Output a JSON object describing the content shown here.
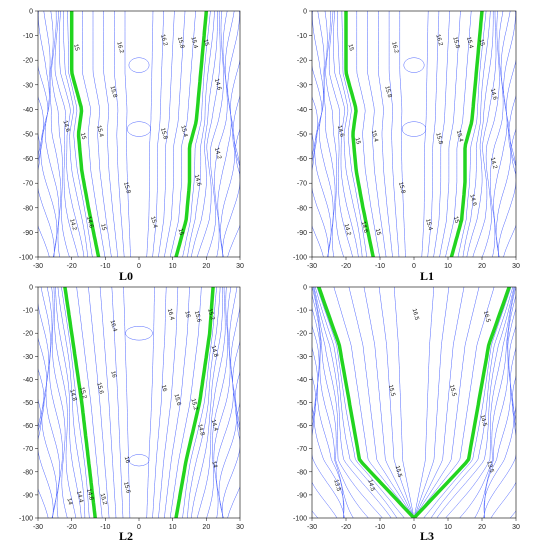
{
  "chart_data": [
    {
      "type": "contour",
      "title": "L0",
      "xlim": [
        -30,
        30
      ],
      "ylim": [
        -100,
        0
      ],
      "x_ticks": [
        -30,
        -20,
        -10,
        0,
        10,
        20,
        30
      ],
      "y_ticks": [
        0,
        -10,
        -20,
        -30,
        -40,
        -50,
        -60,
        -70,
        -80,
        -90,
        -100
      ],
      "highlight_level": 15,
      "labels": [
        {
          "text": "15",
          "x": -19,
          "y": -15
        },
        {
          "text": "16.2",
          "x": -6,
          "y": -15
        },
        {
          "text": "16.2",
          "x": 7,
          "y": -12
        },
        {
          "text": "15.8",
          "x": 12,
          "y": -13
        },
        {
          "text": "15.4",
          "x": 16,
          "y": -13
        },
        {
          "text": "15",
          "x": 19.5,
          "y": -13
        },
        {
          "text": "15.8",
          "x": -8,
          "y": -33
        },
        {
          "text": "14.6",
          "x": 23,
          "y": -30
        },
        {
          "text": "14.6",
          "x": -22,
          "y": -47
        },
        {
          "text": "15.4",
          "x": -12,
          "y": -49
        },
        {
          "text": "15",
          "x": -17,
          "y": -51
        },
        {
          "text": "15.8",
          "x": 7,
          "y": -50
        },
        {
          "text": "15.4",
          "x": 13,
          "y": -49
        },
        {
          "text": "14.2",
          "x": 23,
          "y": -58
        },
        {
          "text": "14.6",
          "x": 17,
          "y": -69
        },
        {
          "text": "15.8",
          "x": -4,
          "y": -72
        },
        {
          "text": "14.2",
          "x": -20,
          "y": -87
        },
        {
          "text": "14.6",
          "x": -15,
          "y": -86
        },
        {
          "text": "15",
          "x": -11,
          "y": -88
        },
        {
          "text": "15.4",
          "x": 4,
          "y": -86
        },
        {
          "text": "15",
          "x": 12,
          "y": -90
        }
      ]
    },
    {
      "type": "contour",
      "title": "L1",
      "xlim": [
        -30,
        30
      ],
      "ylim": [
        -100,
        0
      ],
      "x_ticks": [
        -30,
        -20,
        -10,
        0,
        10,
        20,
        30
      ],
      "y_ticks": [
        0,
        -10,
        -20,
        -30,
        -40,
        -50,
        -60,
        -70,
        -80,
        -90,
        -100
      ],
      "highlight_level": 15,
      "labels": [
        {
          "text": "15",
          "x": -19,
          "y": -15
        },
        {
          "text": "16.2",
          "x": -6,
          "y": -15
        },
        {
          "text": "16.2",
          "x": 7,
          "y": -12
        },
        {
          "text": "15.8",
          "x": 12,
          "y": -13
        },
        {
          "text": "15.4",
          "x": 16,
          "y": -13
        },
        {
          "text": "15",
          "x": 19.5,
          "y": -13
        },
        {
          "text": "15.8",
          "x": -8,
          "y": -33
        },
        {
          "text": "14.6",
          "x": 23,
          "y": -34
        },
        {
          "text": "14.6",
          "x": -22,
          "y": -49
        },
        {
          "text": "15.4",
          "x": -12,
          "y": -51
        },
        {
          "text": "15",
          "x": -17,
          "y": -53
        },
        {
          "text": "15.8",
          "x": 7,
          "y": -52
        },
        {
          "text": "15.4",
          "x": 13,
          "y": -51
        },
        {
          "text": "14.2",
          "x": 23,
          "y": -62
        },
        {
          "text": "14.6",
          "x": 17,
          "y": -77
        },
        {
          "text": "15.8",
          "x": -4,
          "y": -72
        },
        {
          "text": "14.2",
          "x": -20,
          "y": -89
        },
        {
          "text": "14.6",
          "x": -15,
          "y": -88
        },
        {
          "text": "15",
          "x": -11,
          "y": -90
        },
        {
          "text": "15.4",
          "x": 4,
          "y": -87
        },
        {
          "text": "15",
          "x": 12,
          "y": -85
        }
      ]
    },
    {
      "type": "contour",
      "title": "L2",
      "xlim": [
        -30,
        30
      ],
      "ylim": [
        -100,
        0
      ],
      "x_ticks": [
        -30,
        -20,
        -10,
        0,
        10,
        20,
        30
      ],
      "y_ticks": [
        0,
        -10,
        -20,
        -30,
        -40,
        -50,
        -60,
        -70,
        -80,
        -90,
        -100
      ],
      "highlight_level": 15,
      "labels": [
        {
          "text": "16.4",
          "x": -8,
          "y": -17
        },
        {
          "text": "16.4",
          "x": 9,
          "y": -12
        },
        {
          "text": "16",
          "x": 14,
          "y": -12
        },
        {
          "text": "15.6",
          "x": 17,
          "y": -13
        },
        {
          "text": "15.2",
          "x": 21,
          "y": -12
        },
        {
          "text": "14.8",
          "x": 22,
          "y": -28
        },
        {
          "text": "16",
          "x": -8,
          "y": -38
        },
        {
          "text": "15.6",
          "x": -12,
          "y": -44
        },
        {
          "text": "14.8",
          "x": -20,
          "y": -47
        },
        {
          "text": "15.2",
          "x": -17,
          "y": -46
        },
        {
          "text": "16",
          "x": 7,
          "y": -44
        },
        {
          "text": "15.6",
          "x": 11,
          "y": -49
        },
        {
          "text": "15.2",
          "x": 16,
          "y": -51
        },
        {
          "text": "14.8",
          "x": 18,
          "y": -62
        },
        {
          "text": "14.4",
          "x": 22,
          "y": -60
        },
        {
          "text": "16",
          "x": -4,
          "y": -75
        },
        {
          "text": "14",
          "x": 22,
          "y": -77
        },
        {
          "text": "14",
          "x": -21,
          "y": -93
        },
        {
          "text": "14.4",
          "x": -18,
          "y": -91
        },
        {
          "text": "14.8",
          "x": -15,
          "y": -90
        },
        {
          "text": "15.2",
          "x": -11,
          "y": -92
        },
        {
          "text": "15.6",
          "x": -4,
          "y": -87
        }
      ]
    },
    {
      "type": "contour",
      "title": "L3",
      "xlim": [
        -30,
        30
      ],
      "ylim": [
        -100,
        0
      ],
      "x_ticks": [
        -30,
        -20,
        -10,
        0,
        10,
        20,
        30
      ],
      "y_ticks": [
        0,
        -10,
        -20,
        -30,
        -40,
        -50,
        -60,
        -70,
        -80,
        -90,
        -100
      ],
      "highlight_level": 15,
      "labels": [
        {
          "text": "16.5",
          "x": 0,
          "y": -12
        },
        {
          "text": "16.5",
          "x": 21,
          "y": -13
        },
        {
          "text": "15.5",
          "x": -7,
          "y": -45
        },
        {
          "text": "15.5",
          "x": 11,
          "y": -45
        },
        {
          "text": "14.5",
          "x": 20,
          "y": -58
        },
        {
          "text": "13.5",
          "x": 22,
          "y": -78
        },
        {
          "text": "15.5",
          "x": -5,
          "y": -80
        },
        {
          "text": "14.5",
          "x": -13,
          "y": -86
        },
        {
          "text": "13.5",
          "x": -23,
          "y": -86
        }
      ]
    }
  ]
}
